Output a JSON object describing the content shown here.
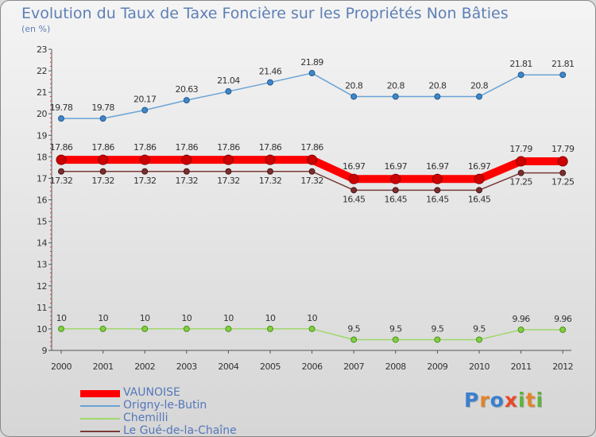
{
  "title": "Evolution du Taux de Taxe Foncière sur les Propriétés Non Bâties",
  "unit_label": "(en %)",
  "brand": {
    "text": "Proxiti",
    "letter_colors": [
      "#3a7fd0",
      "#e2842a",
      "#3a7fd0",
      "#e94a2a",
      "#5fb33a",
      "#e2842a",
      "#5fb33a"
    ]
  },
  "chart_data": {
    "type": "line",
    "x": [
      "2000",
      "2001",
      "2002",
      "2003",
      "2004",
      "2005",
      "2006",
      "2007",
      "2008",
      "2009",
      "2010",
      "2011",
      "2012"
    ],
    "ylim": [
      9,
      23
    ],
    "yticks": [
      "9",
      "10",
      "11",
      "12",
      "13",
      "14",
      "15",
      "16",
      "17",
      "18",
      "19",
      "20",
      "21",
      "22",
      "23"
    ],
    "grid": false,
    "legend_position": "bottom-left",
    "series": [
      {
        "name": "VAUNOISE",
        "color": "#ff0000",
        "values": [
          17.86,
          17.86,
          17.86,
          17.86,
          17.86,
          17.86,
          17.86,
          16.97,
          16.97,
          16.97,
          16.97,
          17.79,
          17.79
        ],
        "labels": [
          "17.86",
          "17.86",
          "17.86",
          "17.86",
          "17.86",
          "17.86",
          "17.86",
          "16.97",
          "16.97",
          "16.97",
          "16.97",
          "17.79",
          "17.79"
        ]
      },
      {
        "name": "Origny-le-Butin",
        "color": "#6aa3d5",
        "values": [
          19.78,
          19.78,
          20.17,
          20.63,
          21.04,
          21.46,
          21.89,
          20.8,
          20.8,
          20.8,
          20.8,
          21.81,
          21.81
        ],
        "labels": [
          "19.78",
          "19.78",
          "20.17",
          "20.63",
          "21.04",
          "21.46",
          "21.89",
          "20.8",
          "20.8",
          "20.8",
          "20.8",
          "21.81",
          "21.81"
        ]
      },
      {
        "name": "Chemilli",
        "color": "#9ed86b",
        "values": [
          10,
          10,
          10,
          10,
          10,
          10,
          10,
          9.5,
          9.5,
          9.5,
          9.5,
          9.96,
          9.96
        ],
        "labels": [
          "10",
          "10",
          "10",
          "10",
          "10",
          "10",
          "10",
          "9.5",
          "9.5",
          "9.5",
          "9.5",
          "9.96",
          "9.96"
        ]
      },
      {
        "name": "Le Gué-de-la-Chaîne",
        "color": "#7a3a3a",
        "values": [
          17.32,
          17.32,
          17.32,
          17.32,
          17.32,
          17.32,
          17.32,
          16.45,
          16.45,
          16.45,
          16.45,
          17.25,
          17.25
        ],
        "labels": [
          "17.32",
          "17.32",
          "17.32",
          "17.32",
          "17.32",
          "17.32",
          "17.32",
          "16.45",
          "16.45",
          "16.45",
          "16.45",
          "17.25",
          "17.25"
        ]
      }
    ]
  }
}
